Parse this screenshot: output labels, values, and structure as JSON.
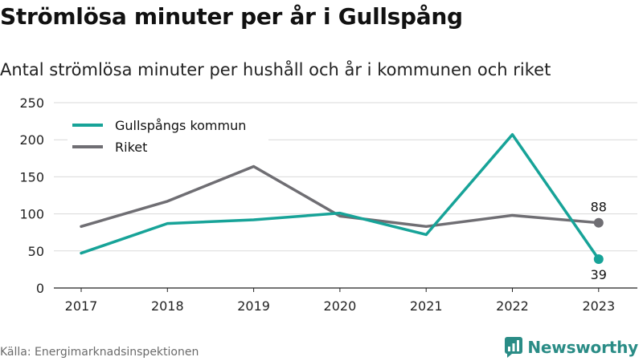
{
  "title": "Strömlösa minuter per år i Gullspång",
  "subtitle": "Antal strömlösa minuter per hushåll och år i kommunen och riket",
  "source": "Källa: Energimarknadsinspektionen",
  "brand": "Newsworthy",
  "colors": {
    "gullspang": "#17a398",
    "riket": "#6f6e73",
    "grid": "#d9d9d9",
    "axis": "#222222",
    "brand": "#2a8c86"
  },
  "chart_data": {
    "type": "line",
    "x": [
      "2017",
      "2018",
      "2019",
      "2020",
      "2021",
      "2022",
      "2023"
    ],
    "series": [
      {
        "name": "Gullspångs kommun",
        "values": [
          47,
          87,
          92,
          101,
          72,
          207,
          39
        ]
      },
      {
        "name": "Riket",
        "values": [
          83,
          117,
          164,
          97,
          83,
          98,
          88
        ]
      }
    ],
    "end_labels": [
      "39",
      "88"
    ],
    "ylim": [
      0,
      250
    ],
    "yticks": [
      0,
      50,
      100,
      150,
      200,
      250
    ],
    "grid": "horizontal",
    "legend": "top-left"
  }
}
